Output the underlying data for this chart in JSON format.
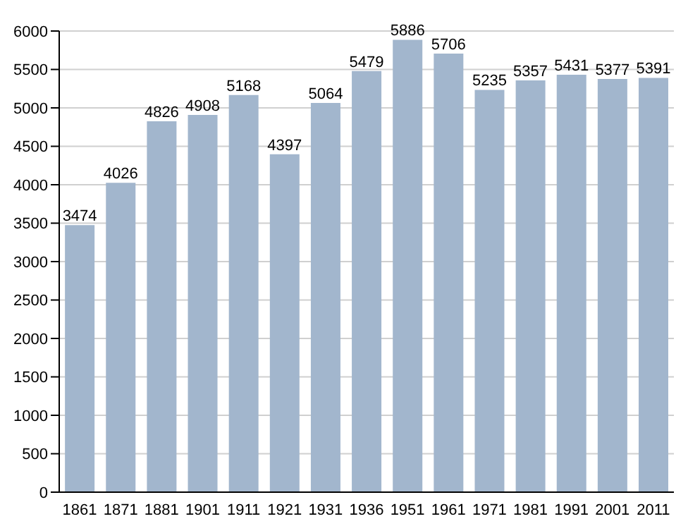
{
  "chart_data": {
    "type": "bar",
    "categories": [
      "1861",
      "1871",
      "1881",
      "1901",
      "1911",
      "1921",
      "1931",
      "1936",
      "1951",
      "1961",
      "1971",
      "1981",
      "1991",
      "2001",
      "2011"
    ],
    "values": [
      3474,
      4026,
      4826,
      4908,
      5168,
      4397,
      5064,
      5479,
      5886,
      5706,
      5235,
      5357,
      5431,
      5377,
      5391
    ],
    "color": "#a2b6cd",
    "ylim": [
      0,
      6000
    ],
    "yticks": [
      0,
      500,
      1000,
      1500,
      2000,
      2500,
      3000,
      3500,
      4000,
      4500,
      5000,
      5500,
      6000
    ],
    "grid": "y",
    "data_labels": true
  }
}
